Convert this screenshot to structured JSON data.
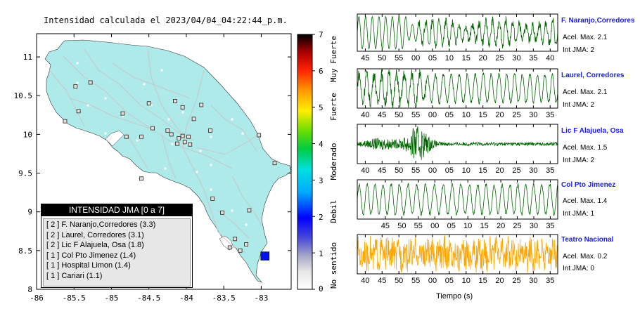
{
  "map": {
    "title": "Intensidad calculada el 2023/04/04_04:22:44_p.m.",
    "x_ticks": [
      "-86",
      "-85.5",
      "-85",
      "-84.5",
      "-84",
      "-83.5",
      "-83"
    ],
    "y_ticks": [
      "11",
      "10.5",
      "10",
      "9.5",
      "9",
      "8.5",
      "8"
    ],
    "colors": {
      "land": "#aeeaea",
      "roads": "#c8c8c8",
      "epicenter": "#0011ee"
    }
  },
  "colorbar": {
    "numbers": [
      "7",
      "6",
      "5",
      "4",
      "3",
      "2",
      "1",
      "0"
    ],
    "labels": [
      "Muy Fuerte",
      "Fuerte",
      "Moderado",
      "Debil",
      "No sentido"
    ]
  },
  "legend": {
    "title": "INTENSIDAD JMA [0 a 7]",
    "rows": [
      "[ 2 ]  F. Naranjo,Corredores (3.3)",
      "[ 2 ]  Laurel, Corredores (3.1)",
      "[ 2 ]  Lic F Alajuela, Osa (1.8)",
      "[ 1 ]  Col Pto Jimenez (1.4)",
      "[ 1 ]  Hospital Limon (1.4)",
      "[ 1 ]  Cariari (1.1)"
    ]
  },
  "waveforms": [
    {
      "name": "F. Naranjo,Corredores",
      "accel": "Acel. Max. 2.1",
      "int": "Int JMA: 2",
      "color": "#006600",
      "ticks": [
        "45",
        "50",
        "55",
        "00",
        "05",
        "10",
        "15",
        "20",
        "25",
        "30",
        "35",
        "40"
      ]
    },
    {
      "name": "Laurel, Corredores",
      "accel": "Acel. Max. 2.1",
      "int": "Int JMA: 2",
      "color": "#006600",
      "ticks": [
        "40",
        "45",
        "50",
        "55",
        "00",
        "05",
        "10",
        "15",
        "20",
        "25",
        "30",
        "35"
      ]
    },
    {
      "name": "Lic F Alajuela, Osa",
      "accel": "Acel. Max. 1.5",
      "int": "Int JMA: 2",
      "color": "#006600",
      "ticks": [
        "40",
        "45",
        "50",
        "55",
        "00",
        "05",
        "10",
        "15",
        "20",
        "25",
        "30",
        "35"
      ]
    },
    {
      "name": "Col Pto Jimenez",
      "accel": "Acel. Max. 1.4",
      "int": "Int JMA: 1",
      "color": "#006600",
      "ticks": [
        "45",
        "50",
        "55",
        "00",
        "05",
        "10",
        "15",
        "20",
        "25",
        "30",
        "35"
      ]
    },
    {
      "name": "Teatro Nacional",
      "accel": "Acel. Max. 0.2",
      "int": "Int JMA: 0",
      "color": "#ffa500",
      "ticks": [
        "40",
        "45",
        "50",
        "55",
        "00",
        "05",
        "10",
        "15",
        "20",
        "25",
        "30",
        "35"
      ]
    }
  ],
  "xlabel": "Tiempo (s)",
  "chart_data": [
    {
      "type": "scatter",
      "title": "Intensidad calculada el 2023/04/04_04:22:44_p.m.",
      "xlim": [
        -86,
        -82.6
      ],
      "ylim": [
        8,
        11.3
      ],
      "epicenter": {
        "lon": -82.95,
        "lat": 8.43
      },
      "stations": [
        {
          "lon": -84.15,
          "lat": 10.43
        },
        {
          "lon": -84.5,
          "lat": 10.4
        },
        {
          "lon": -83.8,
          "lat": 10.38
        },
        {
          "lon": -84.05,
          "lat": 10.35
        },
        {
          "lon": -83.9,
          "lat": 10.2
        },
        {
          "lon": -83.68,
          "lat": 10.05
        },
        {
          "lon": -84.45,
          "lat": 10.08
        },
        {
          "lon": -84.25,
          "lat": 10.05
        },
        {
          "lon": -84.2,
          "lat": 10.0
        },
        {
          "lon": -84.05,
          "lat": 9.98
        },
        {
          "lon": -84.1,
          "lat": 9.95
        },
        {
          "lon": -83.97,
          "lat": 9.97
        },
        {
          "lon": -84.02,
          "lat": 9.9
        },
        {
          "lon": -84.12,
          "lat": 9.88
        },
        {
          "lon": -83.95,
          "lat": 9.87
        },
        {
          "lon": -84.6,
          "lat": 9.97
        },
        {
          "lon": -84.85,
          "lat": 10.27
        },
        {
          "lon": -84.8,
          "lat": 9.97
        },
        {
          "lon": -85.44,
          "lat": 10.3
        },
        {
          "lon": -85.62,
          "lat": 10.17
        },
        {
          "lon": -85.48,
          "lat": 10.62
        },
        {
          "lon": -85.28,
          "lat": 10.67
        },
        {
          "lon": -84.6,
          "lat": 9.43
        },
        {
          "lon": -83.65,
          "lat": 9.17
        },
        {
          "lon": -83.03,
          "lat": 9.99
        },
        {
          "lon": -82.82,
          "lat": 9.63
        },
        {
          "lon": -83.52,
          "lat": 8.99
        },
        {
          "lon": -83.16,
          "lat": 9.02
        },
        {
          "lon": -83.35,
          "lat": 8.65
        },
        {
          "lon": -83.2,
          "lat": 8.58
        },
        {
          "lon": -83.42,
          "lat": 8.54
        },
        {
          "lon": -83.28,
          "lat": 8.5
        }
      ],
      "colorbar": {
        "min": 0,
        "max": 7,
        "labels": [
          "No sentido",
          "Debil",
          "Moderado",
          "Fuerte",
          "Muy Fuerte"
        ]
      }
    },
    {
      "type": "line",
      "xlabel": "Tiempo (s)",
      "series": [
        {
          "name": "F. Naranjo,Corredores",
          "peak": 2.1,
          "jma": 2
        },
        {
          "name": "Laurel, Corredores",
          "peak": 2.1,
          "jma": 2
        },
        {
          "name": "Lic F Alajuela, Osa",
          "peak": 1.5,
          "jma": 2
        },
        {
          "name": "Col Pto Jimenez",
          "peak": 1.4,
          "jma": 1
        },
        {
          "name": "Teatro Nacional",
          "peak": 0.2,
          "jma": 0
        }
      ]
    }
  ]
}
